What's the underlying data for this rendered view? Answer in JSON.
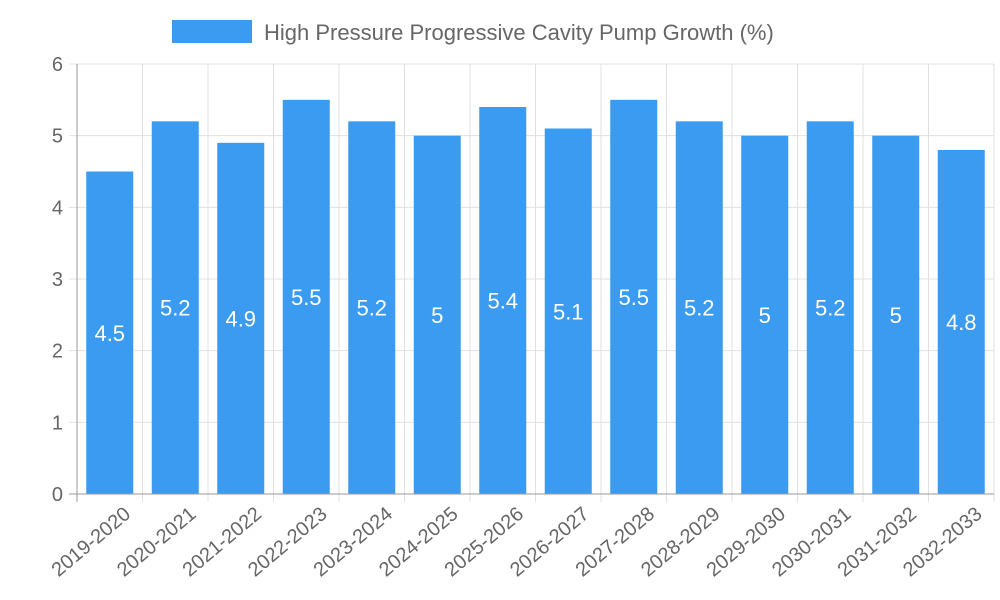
{
  "chart_data": {
    "type": "bar",
    "title": "",
    "xlabel": "",
    "ylabel": "",
    "ylim": [
      0,
      6
    ],
    "yticks": [
      "0",
      "1",
      "2",
      "3",
      "4",
      "5",
      "6"
    ],
    "grid": true,
    "legend": {
      "position": "top-center",
      "entries": [
        "High Pressure Progressive Cavity Pump Growth (%)"
      ]
    },
    "categories": [
      "2019-2020",
      "2020-2021",
      "2021-2022",
      "2022-2023",
      "2023-2024",
      "2024-2025",
      "2025-2026",
      "2026-2027",
      "2027-2028",
      "2028-2029",
      "2029-2030",
      "2030-2031",
      "2031-2032",
      "2032-2033"
    ],
    "series": [
      {
        "name": "High Pressure Progressive Cavity Pump Growth (%)",
        "values": [
          4.5,
          5.2,
          4.9,
          5.5,
          5.2,
          5,
          5.4,
          5.1,
          5.5,
          5.2,
          5,
          5.2,
          5,
          4.8
        ],
        "labels": [
          "4.5",
          "5.2",
          "4.9",
          "5.5",
          "5.2",
          "5",
          "5.4",
          "5.1",
          "5.5",
          "5.2",
          "5",
          "5.2",
          "5",
          "4.8"
        ]
      }
    ],
    "colors": {
      "bar": "#3a9bf0",
      "grid": "#e0e0e0",
      "axis": "#999999"
    }
  }
}
